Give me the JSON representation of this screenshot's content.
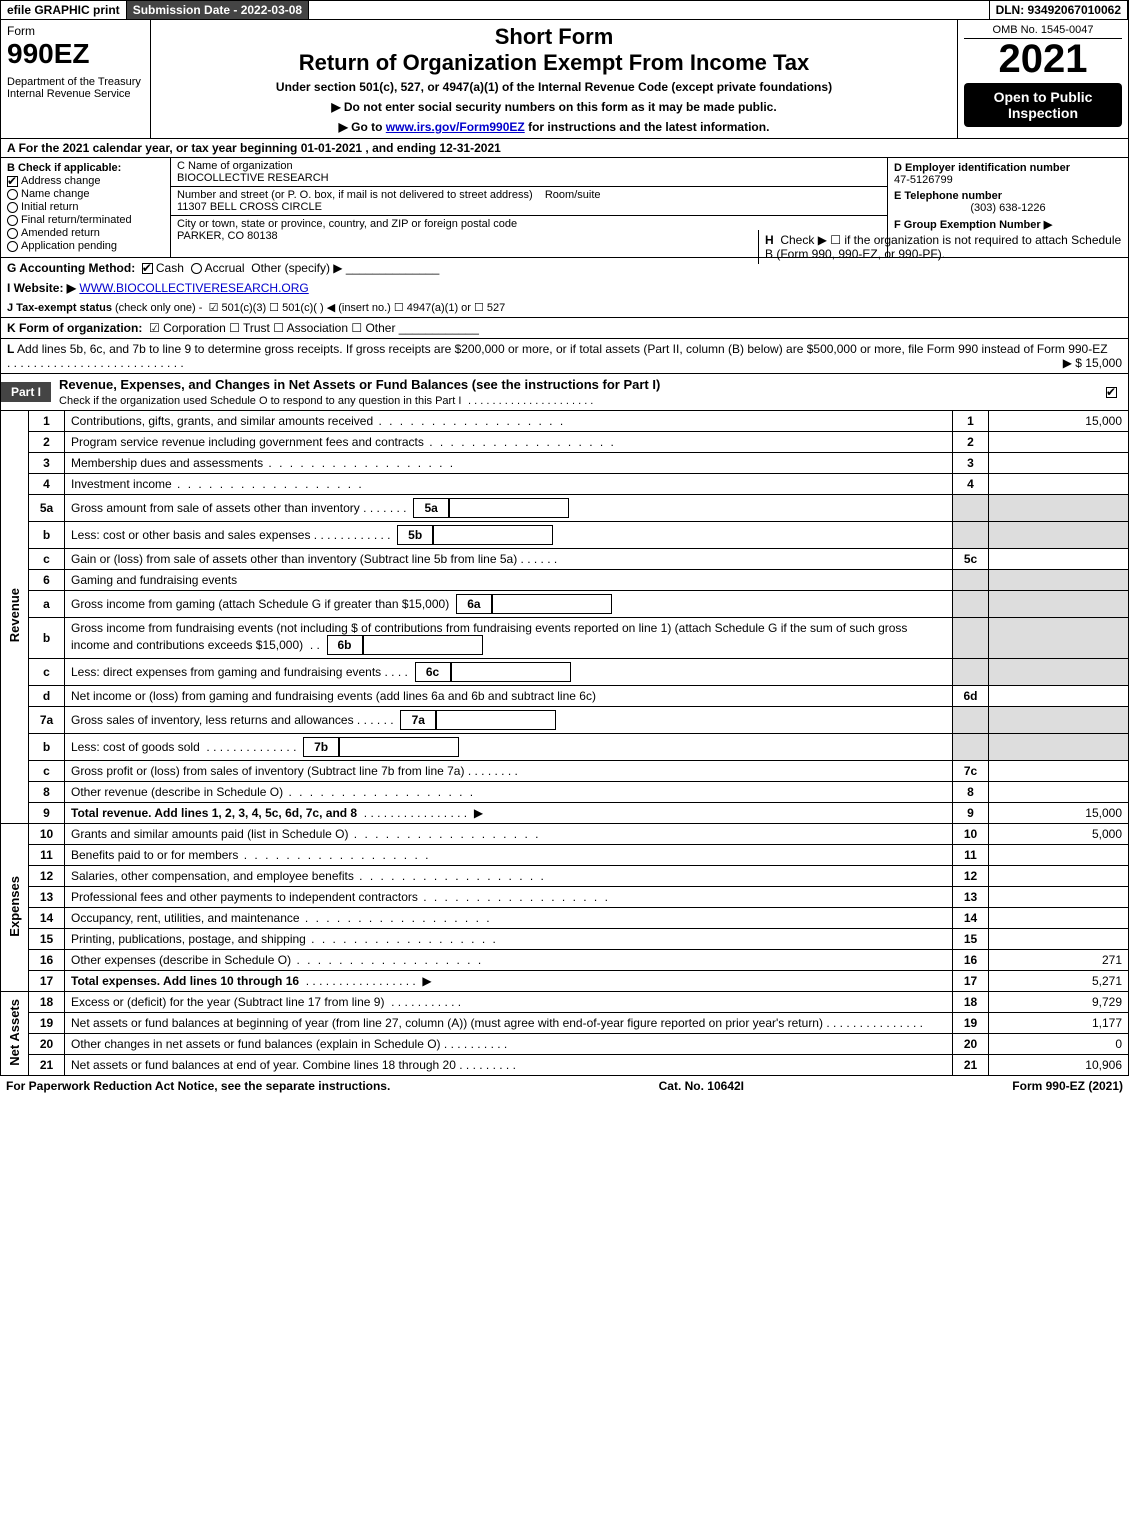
{
  "topbar": {
    "efile": "efile GRAPHIC print",
    "submission": "Submission Date - 2022-03-08",
    "dln": "DLN: 93492067010062"
  },
  "header": {
    "form_word": "Form",
    "form_number": "990EZ",
    "department": "Department of the Treasury\nInternal Revenue Service",
    "short_form": "Short Form",
    "return_title": "Return of Organization Exempt From Income Tax",
    "under_section": "Under section 501(c), 527, or 4947(a)(1) of the Internal Revenue Code (except private foundations)",
    "ssn_note": "▶ Do not enter social security numbers on this form as it may be made public.",
    "goto_note_pre": "▶ Go to ",
    "goto_link": "www.irs.gov/Form990EZ",
    "goto_note_post": " for instructions and the latest information.",
    "omb": "OMB No. 1545-0047",
    "year": "2021",
    "open_public": "Open to Public Inspection"
  },
  "row_a": {
    "letter": "A",
    "text": "For the 2021 calendar year, or tax year beginning 01-01-2021 , and ending 12-31-2021"
  },
  "col_b": {
    "letter": "B",
    "label": "Check if applicable:",
    "items": [
      {
        "label": "Address change",
        "checked": true
      },
      {
        "label": "Name change",
        "checked": false
      },
      {
        "label": "Initial return",
        "checked": false
      },
      {
        "label": "Final return/terminated",
        "checked": false
      },
      {
        "label": "Amended return",
        "checked": false
      },
      {
        "label": "Application pending",
        "checked": false
      }
    ]
  },
  "col_c": {
    "name_label": "C Name of organization",
    "name": "BIOCOLLECTIVE RESEARCH",
    "street_label": "Number and street (or P. O. box, if mail is not delivered to street address)",
    "room_label": "Room/suite",
    "street": "11307 BELL CROSS CIRCLE",
    "city_label": "City or town, state or province, country, and ZIP or foreign postal code",
    "city": "PARKER, CO  80138"
  },
  "col_def": {
    "d_label": "D Employer identification number",
    "ein": "47-5126799",
    "e_label": "E Telephone number",
    "phone": "(303) 638-1226",
    "f_label": "F Group Exemption Number  ▶"
  },
  "row_g": {
    "label": "G Accounting Method:",
    "cash": "Cash",
    "accrual": "Accrual",
    "other": "Other (specify) ▶"
  },
  "row_h": {
    "label": "H",
    "text": "Check ▶  ☐  if the organization is not required to attach Schedule B (Form 990, 990-EZ, or 990-PF)."
  },
  "row_i": {
    "label": "I Website: ▶",
    "site": "WWW.BIOCOLLECTIVERESEARCH.ORG"
  },
  "row_j": {
    "label": "J Tax-exempt status",
    "suffix": " (check only one) -",
    "options": "☑ 501(c)(3)  ☐ 501(c)(  ) ◀ (insert no.)  ☐ 4947(a)(1) or  ☐ 527"
  },
  "row_k": {
    "label": "K Form of organization:",
    "options": "☑ Corporation  ☐ Trust  ☐ Association  ☐ Other"
  },
  "row_l": {
    "label": "L",
    "text": "Add lines 5b, 6c, and 7b to line 9 to determine gross receipts. If gross receipts are $200,000 or more, or if total assets (Part II, column (B) below) are $500,000 or more, file Form 990 instead of Form 990-EZ",
    "arrow": "▶ $",
    "amount": "15,000"
  },
  "part1": {
    "tab": "Part I",
    "title": "Revenue, Expenses, and Changes in Net Assets or Fund Balances (see the instructions for Part I)",
    "check_note": "Check if the organization used Schedule O to respond to any question in this Part I"
  },
  "sections": {
    "revenue": "Revenue",
    "expenses": "Expenses",
    "netassets": "Net Assets"
  },
  "lines": {
    "1": {
      "n": "1",
      "d": "Contributions, gifts, grants, and similar amounts received",
      "r": "1",
      "a": "15,000"
    },
    "2": {
      "n": "2",
      "d": "Program service revenue including government fees and contracts",
      "r": "2",
      "a": ""
    },
    "3": {
      "n": "3",
      "d": "Membership dues and assessments",
      "r": "3",
      "a": ""
    },
    "4": {
      "n": "4",
      "d": "Investment income",
      "r": "4",
      "a": ""
    },
    "5a": {
      "n": "5a",
      "d": "Gross amount from sale of assets other than inventory",
      "sn": "5a"
    },
    "5b": {
      "n": "b",
      "d": "Less: cost or other basis and sales expenses",
      "sn": "5b"
    },
    "5c": {
      "n": "c",
      "d": "Gain or (loss) from sale of assets other than inventory (Subtract line 5b from line 5a)",
      "r": "5c",
      "a": ""
    },
    "6": {
      "n": "6",
      "d": "Gaming and fundraising events"
    },
    "6a": {
      "n": "a",
      "d": "Gross income from gaming (attach Schedule G if greater than $15,000)",
      "sn": "6a"
    },
    "6b": {
      "n": "b",
      "d": "Gross income from fundraising events (not including $                of contributions from fundraising events reported on line 1) (attach Schedule G if the sum of such gross income and contributions exceeds $15,000)",
      "sn": "6b"
    },
    "6c": {
      "n": "c",
      "d": "Less: direct expenses from gaming and fundraising events",
      "sn": "6c"
    },
    "6d": {
      "n": "d",
      "d": "Net income or (loss) from gaming and fundraising events (add lines 6a and 6b and subtract line 6c)",
      "r": "6d",
      "a": ""
    },
    "7a": {
      "n": "7a",
      "d": "Gross sales of inventory, less returns and allowances",
      "sn": "7a"
    },
    "7b": {
      "n": "b",
      "d": "Less: cost of goods sold",
      "sn": "7b"
    },
    "7c": {
      "n": "c",
      "d": "Gross profit or (loss) from sales of inventory (Subtract line 7b from line 7a)",
      "r": "7c",
      "a": ""
    },
    "8": {
      "n": "8",
      "d": "Other revenue (describe in Schedule O)",
      "r": "8",
      "a": ""
    },
    "9": {
      "n": "9",
      "d": "Total revenue. Add lines 1, 2, 3, 4, 5c, 6d, 7c, and 8",
      "r": "9",
      "a": "15,000",
      "arrow": "▶"
    },
    "10": {
      "n": "10",
      "d": "Grants and similar amounts paid (list in Schedule O)",
      "r": "10",
      "a": "5,000"
    },
    "11": {
      "n": "11",
      "d": "Benefits paid to or for members",
      "r": "11",
      "a": ""
    },
    "12": {
      "n": "12",
      "d": "Salaries, other compensation, and employee benefits",
      "r": "12",
      "a": ""
    },
    "13": {
      "n": "13",
      "d": "Professional fees and other payments to independent contractors",
      "r": "13",
      "a": ""
    },
    "14": {
      "n": "14",
      "d": "Occupancy, rent, utilities, and maintenance",
      "r": "14",
      "a": ""
    },
    "15": {
      "n": "15",
      "d": "Printing, publications, postage, and shipping",
      "r": "15",
      "a": ""
    },
    "16": {
      "n": "16",
      "d": "Other expenses (describe in Schedule O)",
      "r": "16",
      "a": "271"
    },
    "17": {
      "n": "17",
      "d": "Total expenses. Add lines 10 through 16",
      "r": "17",
      "a": "5,271",
      "arrow": "▶"
    },
    "18": {
      "n": "18",
      "d": "Excess or (deficit) for the year (Subtract line 17 from line 9)",
      "r": "18",
      "a": "9,729"
    },
    "19": {
      "n": "19",
      "d": "Net assets or fund balances at beginning of year (from line 27, column (A)) (must agree with end-of-year figure reported on prior year's return)",
      "r": "19",
      "a": "1,177"
    },
    "20": {
      "n": "20",
      "d": "Other changes in net assets or fund balances (explain in Schedule O)",
      "r": "20",
      "a": "0"
    },
    "21": {
      "n": "21",
      "d": "Net assets or fund balances at end of year. Combine lines 18 through 20",
      "r": "21",
      "a": "10,906"
    }
  },
  "footer": {
    "left": "For Paperwork Reduction Act Notice, see the separate instructions.",
    "cat": "Cat. No. 10642I",
    "right": "Form 990-EZ (2021)"
  },
  "colors": {
    "dark_header_bg": "#444444",
    "dark_header_fg": "#ffffff",
    "shade_bg": "#dddddd",
    "link": "#0000cc",
    "black": "#000000"
  }
}
